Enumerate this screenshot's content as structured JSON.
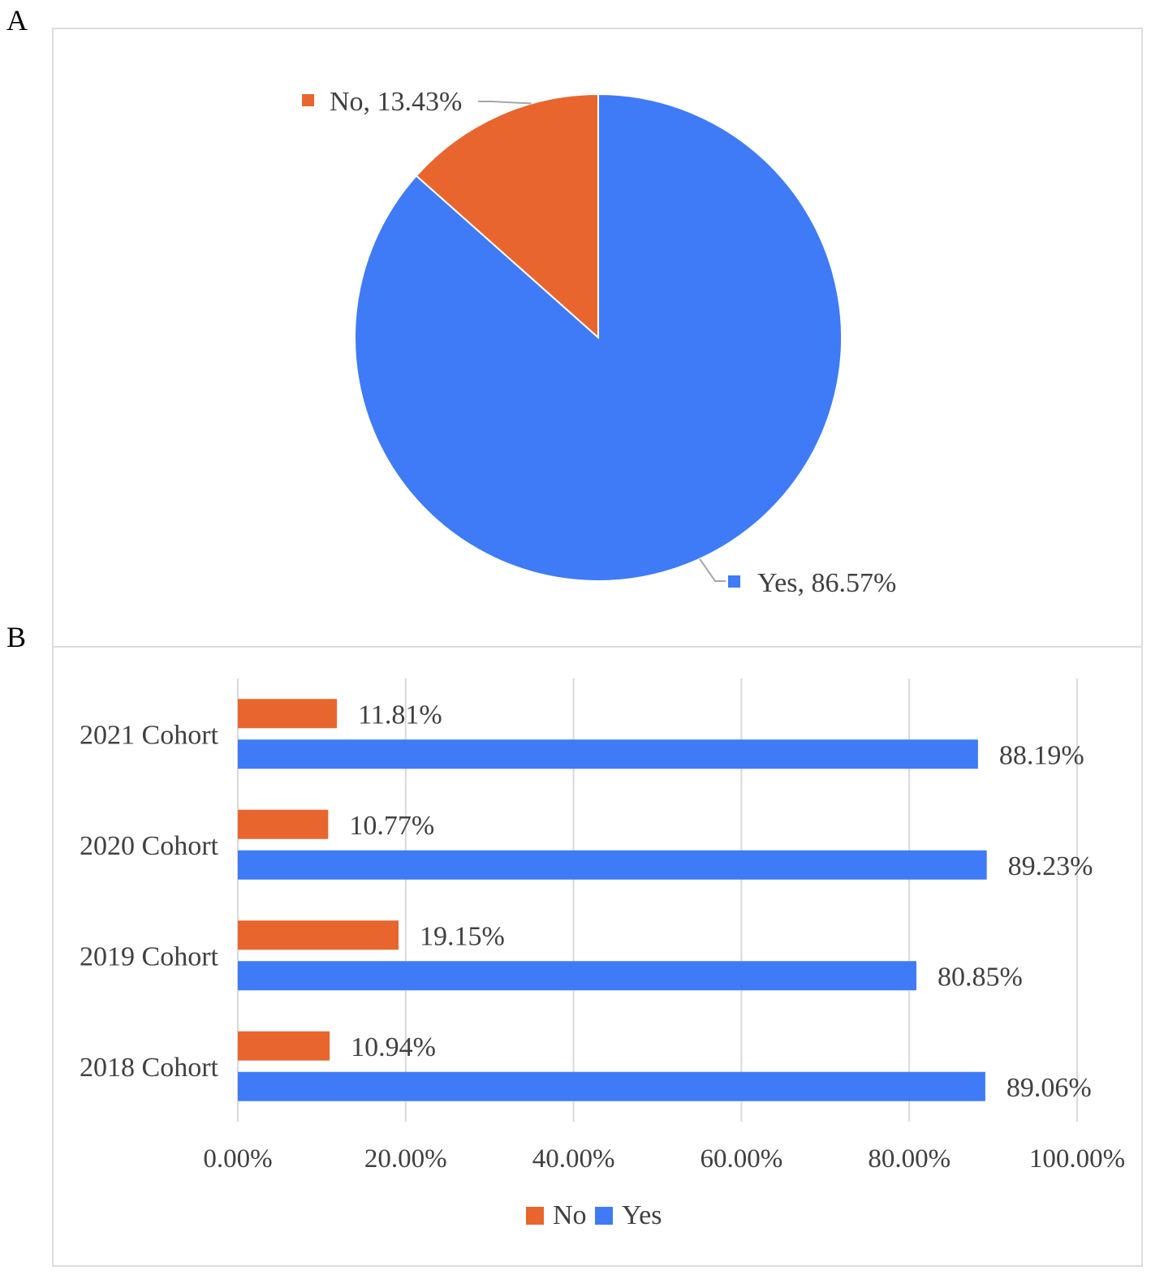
{
  "panels": {
    "a_label": "A",
    "b_label": "B"
  },
  "colors": {
    "no": "#e8662e",
    "yes": "#3f7bf6",
    "grid": "#d9d9d9",
    "text": "#404040"
  },
  "chart_data": [
    {
      "type": "pie",
      "slices": [
        {
          "label": "No",
          "value": 13.43,
          "display": "No, 13.43%"
        },
        {
          "label": "Yes",
          "value": 86.57,
          "display": "Yes, 86.57%"
        }
      ],
      "start_angle": "12 o'clock",
      "labels": "outside, with leader lines"
    },
    {
      "type": "bar",
      "orientation": "horizontal",
      "categories": [
        "2021 Cohort",
        "2020 Cohort",
        "2019 Cohort",
        "2018 Cohort"
      ],
      "series": [
        {
          "name": "No",
          "values": [
            11.81,
            10.77,
            19.15,
            10.94
          ],
          "labels": [
            "11.81%",
            "10.77%",
            "19.15%",
            "10.94%"
          ]
        },
        {
          "name": "Yes",
          "values": [
            88.19,
            89.23,
            80.85,
            89.06
          ],
          "labels": [
            "88.19%",
            "89.23%",
            "80.85%",
            "89.06%"
          ]
        }
      ],
      "xlim": [
        0,
        100
      ],
      "xticks": [
        "0.00%",
        "20.00%",
        "40.00%",
        "60.00%",
        "80.00%",
        "100.00%"
      ],
      "grid": "vertical",
      "legend": "bottom"
    }
  ]
}
